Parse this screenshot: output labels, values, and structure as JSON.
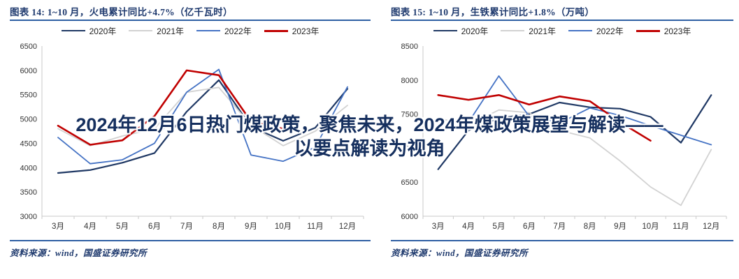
{
  "banner": {
    "line1": "2024年12月6日热门煤政策，聚焦未来，2024年煤政策展望与解读——",
    "line2": "以要点解读为视角",
    "text_color": "#152f5e",
    "outline_color": "#ffffff"
  },
  "panels": [
    {
      "title": "图表 14:  1~10 月，火电累计同比+4.7%（亿千瓦时）",
      "source": "资料来源：wind，国盛证券研究所"
    },
    {
      "title": "图表 15:  1~10 月，生铁累计同比+1.8%（万吨）",
      "source": "资料来源：wind，国盛证券研究所"
    }
  ],
  "colors": {
    "title_blue": "#1f3a6e",
    "rule_blue": "#2e5fa3",
    "axis_gray": "#c9c9c9",
    "series_2020": "#1f3864",
    "series_2021": "#d2d2d2",
    "series_2022": "#4472c4",
    "series_2023": "#c00000"
  },
  "chart_data": [
    {
      "type": "line",
      "title": "1~10 月，火电累计同比+4.7%（亿千瓦时）",
      "categories": [
        "3月",
        "4月",
        "5月",
        "6月",
        "7月",
        "8月",
        "9月",
        "10月",
        "11月",
        "12月"
      ],
      "ylim": [
        3000,
        6500
      ],
      "yticks": [
        3000,
        3500,
        4000,
        4500,
        5000,
        5500,
        6000,
        6500
      ],
      "grid": false,
      "legend_position": "top",
      "series": [
        {
          "name": "2020年",
          "color": "#1f3864",
          "width": 2.2,
          "values": [
            3890,
            3950,
            4100,
            4300,
            5150,
            5800,
            4840,
            4550,
            4820,
            5620
          ]
        },
        {
          "name": "2021年",
          "color": "#d2d2d2",
          "width": 1.8,
          "values": [
            4800,
            4450,
            4650,
            4800,
            5550,
            5650,
            4870,
            4450,
            4750,
            5280
          ]
        },
        {
          "name": "2022年",
          "color": "#4472c4",
          "width": 1.8,
          "values": [
            4620,
            4080,
            4160,
            4500,
            5550,
            6020,
            4260,
            4130,
            4420,
            5660
          ]
        },
        {
          "name": "2023年",
          "color": "#c00000",
          "width": 2.6,
          "values": [
            4860,
            4470,
            4560,
            5060,
            6000,
            5900,
            4950,
            4800,
            null,
            null
          ]
        }
      ]
    },
    {
      "type": "line",
      "title": "1~10 月，生铁累计同比+1.8%（万吨）",
      "categories": [
        "3月",
        "4月",
        "5月",
        "6月",
        "7月",
        "8月",
        "9月",
        "10月",
        "11月",
        "12月"
      ],
      "ylim": [
        6000,
        8500
      ],
      "yticks": [
        6000,
        6500,
        7000,
        7500,
        8000,
        8500
      ],
      "grid": false,
      "legend_position": "top",
      "series": [
        {
          "name": "2020年",
          "color": "#1f3864",
          "width": 2.2,
          "values": [
            6690,
            7260,
            7440,
            7500,
            7670,
            7600,
            7580,
            7460,
            7080,
            7780
          ]
        },
        {
          "name": "2021年",
          "color": "#d2d2d2",
          "width": 1.8,
          "values": [
            7440,
            7340,
            7560,
            7520,
            7260,
            7150,
            6810,
            6430,
            6160,
            6980
          ]
        },
        {
          "name": "2022年",
          "color": "#4472c4",
          "width": 1.8,
          "values": [
            7240,
            7380,
            8060,
            7470,
            7370,
            7590,
            7480,
            7330,
            7190,
            7050
          ]
        },
        {
          "name": "2023年",
          "color": "#c00000",
          "width": 2.6,
          "values": [
            7780,
            7710,
            7780,
            7640,
            7760,
            7690,
            7380,
            7110,
            null,
            null
          ]
        }
      ]
    }
  ]
}
